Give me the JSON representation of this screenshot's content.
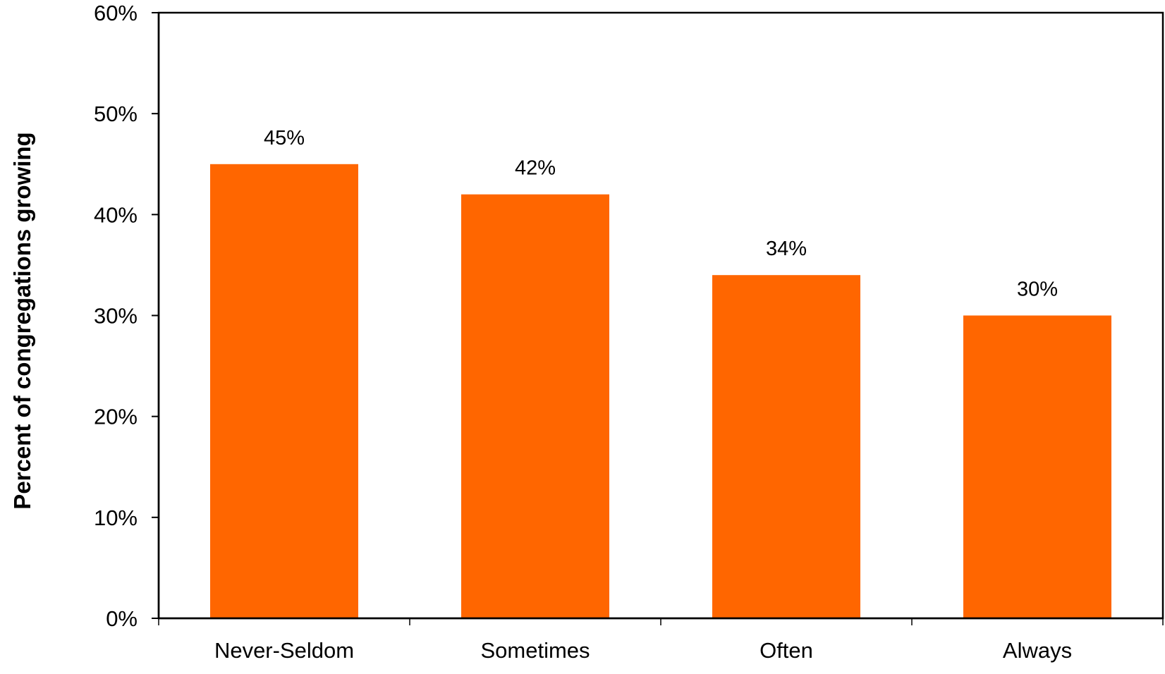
{
  "chart_data": {
    "type": "bar",
    "categories": [
      "Never-Seldom",
      "Sometimes",
      "Often",
      "Always"
    ],
    "values": [
      45,
      42,
      34,
      30
    ],
    "data_labels": [
      "45%",
      "42%",
      "34%",
      "30%"
    ],
    "title": "",
    "xlabel": "",
    "ylabel": "Percent of congregations growing",
    "ylim": [
      0,
      60
    ],
    "yticks": [
      0,
      10,
      20,
      30,
      40,
      50,
      60
    ],
    "ytick_labels": [
      "0%",
      "10%",
      "20%",
      "30%",
      "40%",
      "50%",
      "60%"
    ],
    "grid": false,
    "legend": "none",
    "bar_color": "#FF6600",
    "axis_color": "#000000"
  }
}
